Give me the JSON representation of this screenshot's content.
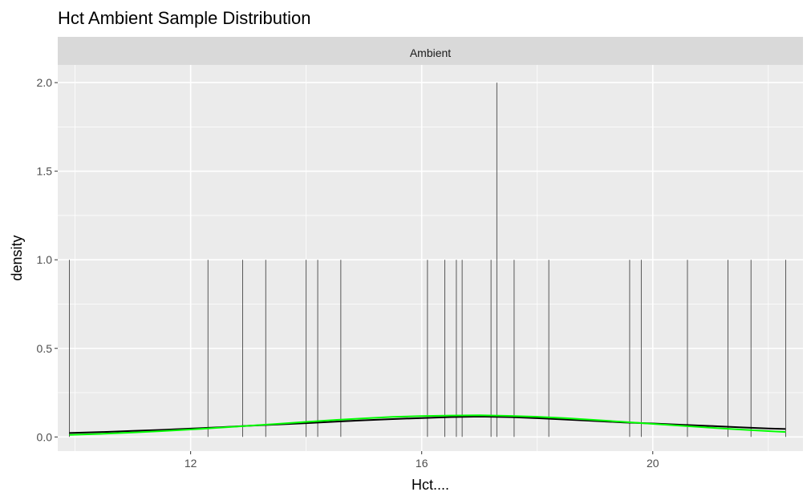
{
  "colors": {
    "panel_bg": "#EBEBEB",
    "strip_bg": "#D9D9D9",
    "grid": "#FFFFFF",
    "spike": "#333333",
    "axis_tick": "#333333",
    "density_line": "#000000",
    "normal_curve": "#00FF00"
  },
  "chart_data": {
    "type": "line",
    "title": "Hct Ambient Sample Distribution",
    "facet_label": "Ambient",
    "xlabel": "Hct....",
    "ylabel": "density",
    "xlim": [
      9.7,
      22.6
    ],
    "ylim": [
      -0.08,
      2.1
    ],
    "x_ticks": [
      12,
      16,
      20
    ],
    "x_minor": [
      10,
      14,
      18,
      22
    ],
    "y_ticks": [
      0.0,
      0.5,
      1.0,
      1.5,
      2.0
    ],
    "y_tick_labels": [
      "0.0",
      "0.5",
      "1.0",
      "1.5",
      "2.0"
    ],
    "y_minor": [
      0.25,
      0.75,
      1.25,
      1.75
    ],
    "grid": true,
    "spikes": {
      "x": [
        9.9,
        12.3,
        12.9,
        13.3,
        14.0,
        14.2,
        14.6,
        16.1,
        16.4,
        16.6,
        16.7,
        17.2,
        17.3,
        17.6,
        18.2,
        19.6,
        19.8,
        20.6,
        21.3,
        21.7,
        22.3
      ],
      "y": [
        1,
        1,
        1,
        1,
        1,
        1,
        1,
        1,
        1,
        1,
        1,
        1,
        2,
        1,
        1,
        1,
        1,
        1,
        1,
        1,
        1
      ]
    },
    "series": [
      {
        "x": [
          9.9,
          10.5,
          11.0,
          11.5,
          12.0,
          12.5,
          13.0,
          13.5,
          14.0,
          14.5,
          15.0,
          15.5,
          16.0,
          16.5,
          17.0,
          17.5,
          18.0,
          18.5,
          19.0,
          19.5,
          20.0,
          20.5,
          21.0,
          21.5,
          22.0,
          22.3
        ],
        "y": [
          0.022,
          0.028,
          0.034,
          0.04,
          0.047,
          0.055,
          0.063,
          0.07,
          0.078,
          0.086,
          0.094,
          0.101,
          0.107,
          0.112,
          0.115,
          0.112,
          0.106,
          0.098,
          0.09,
          0.082,
          0.076,
          0.069,
          0.062,
          0.055,
          0.048,
          0.045
        ]
      },
      {
        "x": [
          9.9,
          10.5,
          11.0,
          11.5,
          12.0,
          12.5,
          13.0,
          13.5,
          14.0,
          14.5,
          15.0,
          15.5,
          16.0,
          16.5,
          17.0,
          17.5,
          18.0,
          18.5,
          19.0,
          19.5,
          20.0,
          20.5,
          21.0,
          21.5,
          22.0,
          22.3
        ],
        "y": [
          0.012,
          0.018,
          0.025,
          0.033,
          0.042,
          0.052,
          0.063,
          0.074,
          0.085,
          0.096,
          0.105,
          0.113,
          0.118,
          0.121,
          0.122,
          0.119,
          0.114,
          0.106,
          0.096,
          0.085,
          0.074,
          0.063,
          0.052,
          0.042,
          0.033,
          0.028
        ]
      }
    ]
  }
}
